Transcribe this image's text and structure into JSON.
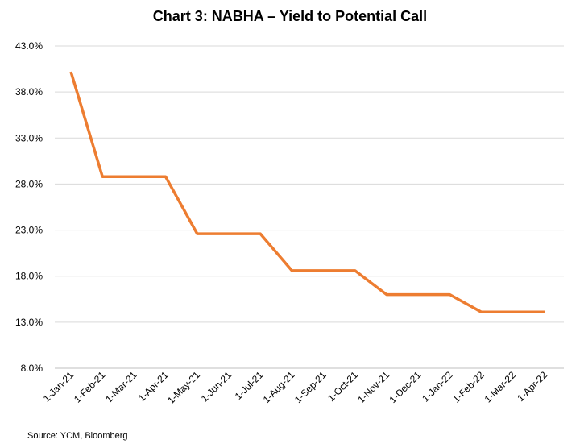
{
  "chart_data": {
    "type": "line",
    "title": "Chart 3: NABHA – Yield to Potential Call",
    "xlabel": "",
    "ylabel": "",
    "categories": [
      "1-Jan-21",
      "1-Feb-21",
      "1-Mar-21",
      "1-Apr-21",
      "1-May-21",
      "1-Jun-21",
      "1-Jul-21",
      "1-Aug-21",
      "1-Sep-21",
      "1-Oct-21",
      "1-Nov-21",
      "1-Dec-21",
      "1-Jan-22",
      "1-Feb-22",
      "1-Mar-22",
      "1-Apr-22"
    ],
    "series": [
      {
        "name": "",
        "color": "#ED7D31",
        "values": [
          40.2,
          28.8,
          28.8,
          28.8,
          22.6,
          22.6,
          22.6,
          18.6,
          18.6,
          18.6,
          16.0,
          16.0,
          16.0,
          14.1,
          14.1,
          14.1
        ]
      }
    ],
    "ylim": [
      8.0,
      43.0
    ],
    "yticks": [
      "8.0%",
      "13.0%",
      "18.0%",
      "23.0%",
      "28.0%",
      "33.0%",
      "38.0%",
      "43.0%"
    ],
    "grid": true,
    "legend": "none"
  },
  "source": "Source: YCM, Bloomberg"
}
